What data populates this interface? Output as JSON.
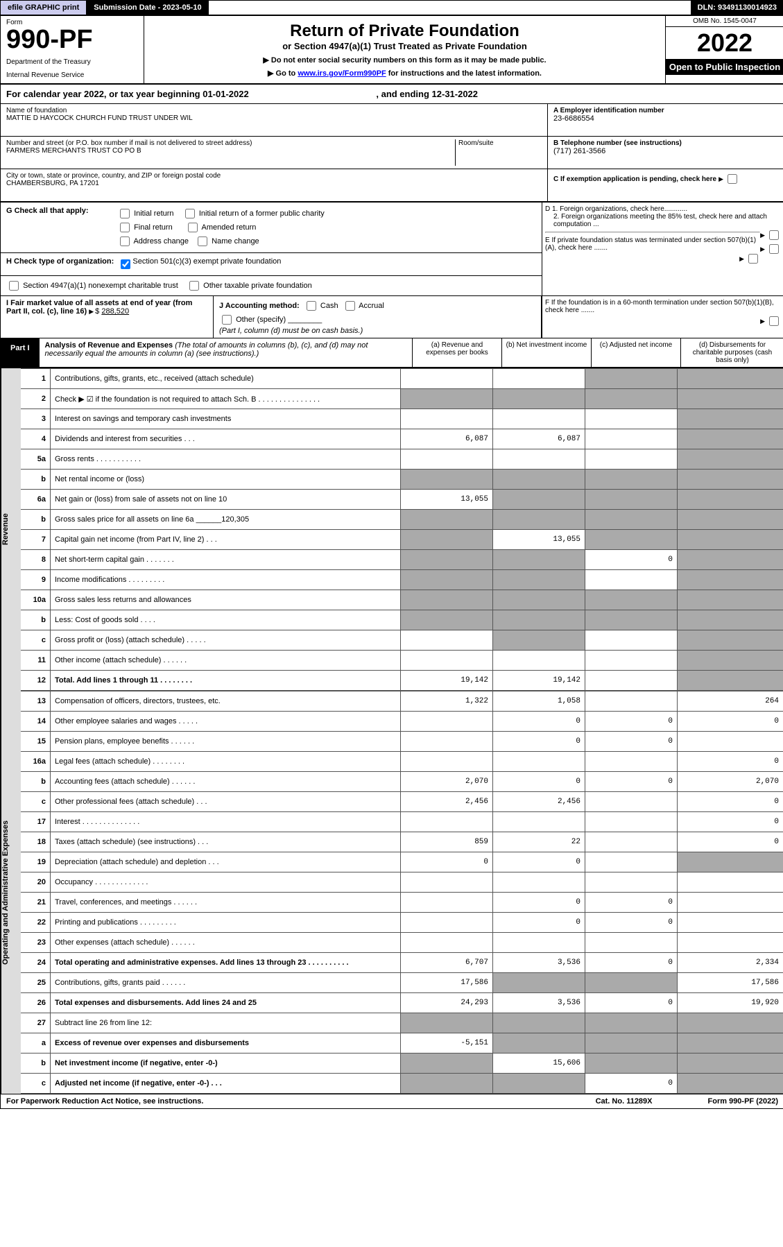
{
  "top": {
    "efile": "efile GRAPHIC print",
    "submission": "Submission Date - 2023-05-10",
    "dln": "DLN: 93491130014923"
  },
  "header": {
    "form": "Form",
    "number": "990-PF",
    "dept": "Department of the Treasury",
    "irs": "Internal Revenue Service",
    "title": "Return of Private Foundation",
    "subtitle": "or Section 4947(a)(1) Trust Treated as Private Foundation",
    "note1": "▶ Do not enter social security numbers on this form as it may be made public.",
    "note2_pre": "▶ Go to ",
    "note2_link": "www.irs.gov/Form990PF",
    "note2_post": " for instructions and the latest information.",
    "omb": "OMB No. 1545-0047",
    "year": "2022",
    "open": "Open to Public Inspection"
  },
  "calyear": {
    "text": "For calendar year 2022, or tax year beginning 01-01-2022",
    "end": ", and ending 12-31-2022"
  },
  "info": {
    "name_lbl": "Name of foundation",
    "name": "MATTIE D HAYCOCK CHURCH FUND TRUST UNDER WIL",
    "addr_lbl": "Number and street (or P.O. box number if mail is not delivered to street address)",
    "addr": "FARMERS MERCHANTS TRUST CO PO B",
    "room_lbl": "Room/suite",
    "city_lbl": "City or town, state or province, country, and ZIP or foreign postal code",
    "city": "CHAMBERSBURG, PA  17201",
    "ein_lbl": "A Employer identification number",
    "ein": "23-6686554",
    "tel_lbl": "B Telephone number (see instructions)",
    "tel": "(717) 261-3566",
    "c_lbl": "C If exemption application is pending, check here",
    "d1": "D 1. Foreign organizations, check here............",
    "d2": "2. Foreign organizations meeting the 85% test, check here and attach computation ...",
    "e": "E  If private foundation status was terminated under section 507(b)(1)(A), check here .......",
    "f": "F  If the foundation is in a 60-month termination under section 507(b)(1)(B), check here .......",
    "g_lbl": "G Check all that apply:",
    "g_initial": "Initial return",
    "g_initial_former": "Initial return of a former public charity",
    "g_final": "Final return",
    "g_amended": "Amended return",
    "g_addr": "Address change",
    "g_name": "Name change",
    "h_lbl": "H Check type of organization:",
    "h_501": "Section 501(c)(3) exempt private foundation",
    "h_4947": "Section 4947(a)(1) nonexempt charitable trust",
    "h_other": "Other taxable private foundation",
    "i_lbl": "I Fair market value of all assets at end of year (from Part II, col. (c), line 16)",
    "i_val": "288,520",
    "j_lbl": "J Accounting method:",
    "j_cash": "Cash",
    "j_accrual": "Accrual",
    "j_other": "Other (specify)",
    "j_note": "(Part I, column (d) must be on cash basis.)"
  },
  "part1": {
    "tag": "Part I",
    "title": "Analysis of Revenue and Expenses",
    "sub": "(The total of amounts in columns (b), (c), and (d) may not necessarily equal the amounts in column (a) (see instructions).)",
    "col_a": "(a)   Revenue and expenses per books",
    "col_b": "(b)   Net investment income",
    "col_c": "(c)   Adjusted net income",
    "col_d": "(d)   Disbursements for charitable purposes (cash basis only)"
  },
  "side": {
    "revenue": "Revenue",
    "expenses": "Operating and Administrative Expenses"
  },
  "rows": [
    {
      "n": "1",
      "d": "Contributions, gifts, grants, etc., received (attach schedule)",
      "a": "",
      "b": "",
      "c": "g",
      "dd": "g"
    },
    {
      "n": "2",
      "d": "Check ▶ ☑ if the foundation is not required to attach Sch. B   .   .   .   .   .   .   .   .   .   .   .   .   .   .   .",
      "a": "g",
      "b": "g",
      "c": "g",
      "dd": "g"
    },
    {
      "n": "3",
      "d": "Interest on savings and temporary cash investments",
      "a": "",
      "b": "",
      "c": "",
      "dd": "g"
    },
    {
      "n": "4",
      "d": "Dividends and interest from securities   .   .   .",
      "a": "6,087",
      "b": "6,087",
      "c": "",
      "dd": "g"
    },
    {
      "n": "5a",
      "d": "Gross rents   .   .   .   .   .   .   .   .   .   .   .",
      "a": "",
      "b": "",
      "c": "",
      "dd": "g"
    },
    {
      "n": "b",
      "d": "Net rental income or (loss)  ",
      "a": "g",
      "b": "g",
      "c": "g",
      "dd": "g"
    },
    {
      "n": "6a",
      "d": "Net gain or (loss) from sale of assets not on line 10",
      "a": "13,055",
      "b": "g",
      "c": "g",
      "dd": "g"
    },
    {
      "n": "b",
      "d": "Gross sales price for all assets on line 6a ______120,305",
      "a": "g",
      "b": "g",
      "c": "g",
      "dd": "g"
    },
    {
      "n": "7",
      "d": "Capital gain net income (from Part IV, line 2)   .   .   .",
      "a": "g",
      "b": "13,055",
      "c": "g",
      "dd": "g"
    },
    {
      "n": "8",
      "d": "Net short-term capital gain   .   .   .   .   .   .   .",
      "a": "g",
      "b": "g",
      "c": "0",
      "dd": "g"
    },
    {
      "n": "9",
      "d": "Income modifications   .   .   .   .   .   .   .   .   .",
      "a": "g",
      "b": "g",
      "c": "",
      "dd": "g"
    },
    {
      "n": "10a",
      "d": "Gross sales less returns and allowances",
      "a": "g",
      "b": "g",
      "c": "g",
      "dd": "g"
    },
    {
      "n": "b",
      "d": "Less: Cost of goods sold   .   .   .   .",
      "a": "g",
      "b": "g",
      "c": "g",
      "dd": "g"
    },
    {
      "n": "c",
      "d": "Gross profit or (loss) (attach schedule)   .   .   .   .   .",
      "a": "",
      "b": "g",
      "c": "",
      "dd": "g"
    },
    {
      "n": "11",
      "d": "Other income (attach schedule)   .   .   .   .   .   .",
      "a": "",
      "b": "",
      "c": "",
      "dd": "g"
    },
    {
      "n": "12",
      "d": "Total. Add lines 1 through 11   .   .   .   .   .   .   .   .",
      "a": "19,142",
      "b": "19,142",
      "c": "",
      "dd": "g",
      "bold": true
    }
  ],
  "exp": [
    {
      "n": "13",
      "d": "Compensation of officers, directors, trustees, etc.",
      "a": "1,322",
      "b": "1,058",
      "c": "",
      "dd": "264"
    },
    {
      "n": "14",
      "d": "Other employee salaries and wages   .   .   .   .   .",
      "a": "",
      "b": "0",
      "c": "0",
      "dd": "0"
    },
    {
      "n": "15",
      "d": "Pension plans, employee benefits   .   .   .   .   .   .",
      "a": "",
      "b": "0",
      "c": "0",
      "dd": ""
    },
    {
      "n": "16a",
      "d": "Legal fees (attach schedule)   .   .   .   .   .   .   .   .",
      "a": "",
      "b": "",
      "c": "",
      "dd": "0"
    },
    {
      "n": "b",
      "d": "Accounting fees (attach schedule)   .   .   .   .   .   .",
      "a": "2,070",
      "b": "0",
      "c": "0",
      "dd": "2,070"
    },
    {
      "n": "c",
      "d": "Other professional fees (attach schedule)   .   .   .",
      "a": "2,456",
      "b": "2,456",
      "c": "",
      "dd": "0"
    },
    {
      "n": "17",
      "d": "Interest   .   .   .   .   .   .   .   .   .   .   .   .   .   .",
      "a": "",
      "b": "",
      "c": "",
      "dd": "0"
    },
    {
      "n": "18",
      "d": "Taxes (attach schedule) (see instructions)   .   .   .",
      "a": "859",
      "b": "22",
      "c": "",
      "dd": "0"
    },
    {
      "n": "19",
      "d": "Depreciation (attach schedule) and depletion   .   .   .",
      "a": "0",
      "b": "0",
      "c": "",
      "dd": "g"
    },
    {
      "n": "20",
      "d": "Occupancy   .   .   .   .   .   .   .   .   .   .   .   .   .",
      "a": "",
      "b": "",
      "c": "",
      "dd": ""
    },
    {
      "n": "21",
      "d": "Travel, conferences, and meetings   .   .   .   .   .   .",
      "a": "",
      "b": "0",
      "c": "0",
      "dd": ""
    },
    {
      "n": "22",
      "d": "Printing and publications   .   .   .   .   .   .   .   .   .",
      "a": "",
      "b": "0",
      "c": "0",
      "dd": ""
    },
    {
      "n": "23",
      "d": "Other expenses (attach schedule)   .   .   .   .   .   .",
      "a": "",
      "b": "",
      "c": "",
      "dd": ""
    },
    {
      "n": "24",
      "d": "Total operating and administrative expenses. Add lines 13 through 23   .   .   .   .   .   .   .   .   .   .",
      "a": "6,707",
      "b": "3,536",
      "c": "0",
      "dd": "2,334",
      "bold": true
    },
    {
      "n": "25",
      "d": "Contributions, gifts, grants paid   .   .   .   .   .   .",
      "a": "17,586",
      "b": "g",
      "c": "g",
      "dd": "17,586"
    },
    {
      "n": "26",
      "d": "Total expenses and disbursements. Add lines 24 and 25",
      "a": "24,293",
      "b": "3,536",
      "c": "0",
      "dd": "19,920",
      "bold": true
    },
    {
      "n": "27",
      "d": "Subtract line 26 from line 12:",
      "a": "g",
      "b": "g",
      "c": "g",
      "dd": "g"
    },
    {
      "n": "a",
      "d": "Excess of revenue over expenses and disbursements",
      "a": "-5,151",
      "b": "g",
      "c": "g",
      "dd": "g",
      "bold": true
    },
    {
      "n": "b",
      "d": "Net investment income (if negative, enter -0-)",
      "a": "g",
      "b": "15,606",
      "c": "g",
      "dd": "g",
      "bold": true
    },
    {
      "n": "c",
      "d": "Adjusted net income (if negative, enter -0-)   .   .   .",
      "a": "g",
      "b": "g",
      "c": "0",
      "dd": "g",
      "bold": true
    }
  ],
  "footer": {
    "left": "For Paperwork Reduction Act Notice, see instructions.",
    "mid": "Cat. No. 11289X",
    "right": "Form 990-PF (2022)"
  }
}
